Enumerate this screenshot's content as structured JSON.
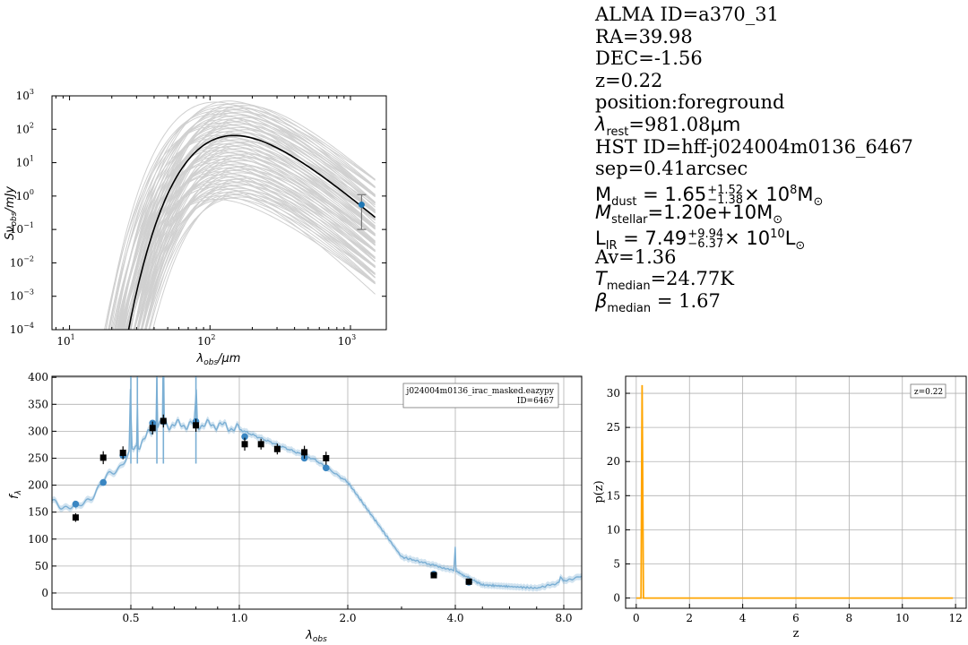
{
  "info": {
    "alma_id": "ALMA ID=a370_31",
    "ra": "RA=39.98",
    "dec": "DEC=-1.56",
    "z": "z=0.22",
    "position": "position:foreground",
    "lambda_rest_value": "=981.08",
    "lambda_rest_unit": "μm",
    "hst_id": "HST ID=hff-j024004m0136_6467",
    "sep": "sep=0.41arcsec",
    "mdust_value": "1.65",
    "mdust_err_plus": "+1.52",
    "mdust_err_minus": "−1.38",
    "mdust_scale": "× 10",
    "mdust_exp": "8",
    "mstellar": "=1.20e+10M",
    "lir_value": "7.49",
    "lir_err_plus": "+9.94",
    "lir_err_minus": "−6.37",
    "lir_scale": "× 10",
    "lir_exp": "10",
    "av": "Av=1.36",
    "t_median": "=24.77K",
    "beta_median": "= 1.67"
  },
  "chart_data": [
    {
      "type": "line",
      "panel": "dust-sed",
      "xscale": "log",
      "yscale": "log",
      "xlim": [
        7.5,
        1800
      ],
      "ylim": [
        0.0001,
        1000
      ],
      "xticks": [
        10,
        100,
        1000
      ],
      "xtick_labels": [
        "10",
        "10",
        "10"
      ],
      "xtick_exponents": [
        "1",
        "2",
        "3"
      ],
      "yticks": [
        0.0001,
        0.001,
        0.01,
        0.1,
        1,
        10,
        100,
        1000
      ],
      "ytick_exponents": [
        "−4",
        "−3",
        "−2",
        "−1",
        "0",
        "1",
        "2",
        "3"
      ],
      "xlabel": "λobs/μm",
      "ylabel": "Sνobs/mJy",
      "model_draws": {
        "count": 90,
        "peak_min": 0.8,
        "peak_max": 700,
        "color": "#d0d0d0"
      },
      "best_fit": {
        "peak_lambda": 150,
        "peak_flux": 65,
        "color": "#000000"
      },
      "observation": {
        "x": 1200,
        "y": 0.55,
        "yerr_low": 0.1,
        "yerr_high": 1.1,
        "color": "#1f77b4"
      },
      "grid": false
    },
    {
      "type": "line",
      "panel": "optical-sed",
      "xlim": [
        0.3,
        8.9
      ],
      "ylim": [
        -30,
        402
      ],
      "xticks": [
        0.5,
        1.0,
        2.0,
        4.0,
        8.0
      ],
      "xtick_labels": [
        "0.5",
        "1.0",
        "2.0",
        "4.0",
        "8.0"
      ],
      "yticks": [
        0,
        50,
        100,
        150,
        200,
        250,
        300,
        350,
        400
      ],
      "xlabel": "λobs",
      "ylabel": "fλ",
      "legend_line1": "j024004m0136_irac_masked.eazypy",
      "legend_line2": "ID=6467",
      "template_color": "#7bafd4",
      "model_points": [
        {
          "x": 0.36,
          "y": 165
        },
        {
          "x": 0.43,
          "y": 205
        },
        {
          "x": 0.48,
          "y": 255
        },
        {
          "x": 0.6,
          "y": 315
        },
        {
          "x": 0.65,
          "y": 318
        },
        {
          "x": 0.8,
          "y": 318
        },
        {
          "x": 1.05,
          "y": 290
        },
        {
          "x": 1.6,
          "y": 250
        },
        {
          "x": 1.8,
          "y": 232
        },
        {
          "x": 3.6,
          "y": 35
        },
        {
          "x": 4.5,
          "y": 20
        }
      ],
      "observed_points": [
        {
          "x": 0.36,
          "y": 140,
          "err": 8
        },
        {
          "x": 0.43,
          "y": 251,
          "err": 12
        },
        {
          "x": 0.48,
          "y": 260,
          "err": 12
        },
        {
          "x": 0.6,
          "y": 306,
          "err": 12
        },
        {
          "x": 0.65,
          "y": 319,
          "err": 12
        },
        {
          "x": 0.8,
          "y": 311,
          "err": 12
        },
        {
          "x": 1.05,
          "y": 276,
          "err": 12
        },
        {
          "x": 1.2,
          "y": 276,
          "err": 10
        },
        {
          "x": 1.35,
          "y": 267,
          "err": 10
        },
        {
          "x": 1.6,
          "y": 261,
          "err": 12
        },
        {
          "x": 1.8,
          "y": 250,
          "err": 12
        },
        {
          "x": 3.6,
          "y": 33,
          "err": 4
        },
        {
          "x": 4.5,
          "y": 21,
          "err": 4
        }
      ],
      "grid": true
    },
    {
      "type": "line",
      "panel": "pz",
      "xlim": [
        -0.4,
        12.4
      ],
      "ylim": [
        -1.5,
        32.5
      ],
      "xticks": [
        0,
        2,
        4,
        6,
        8,
        10,
        12
      ],
      "yticks": [
        0,
        5,
        10,
        15,
        20,
        25,
        30
      ],
      "xlabel": "z",
      "ylabel": "p(z)",
      "legend": "z=0.22",
      "peak_z": 0.22,
      "peak_p": 31.2,
      "z_max": 11.9,
      "color": "#ffa500",
      "grid": true
    }
  ]
}
